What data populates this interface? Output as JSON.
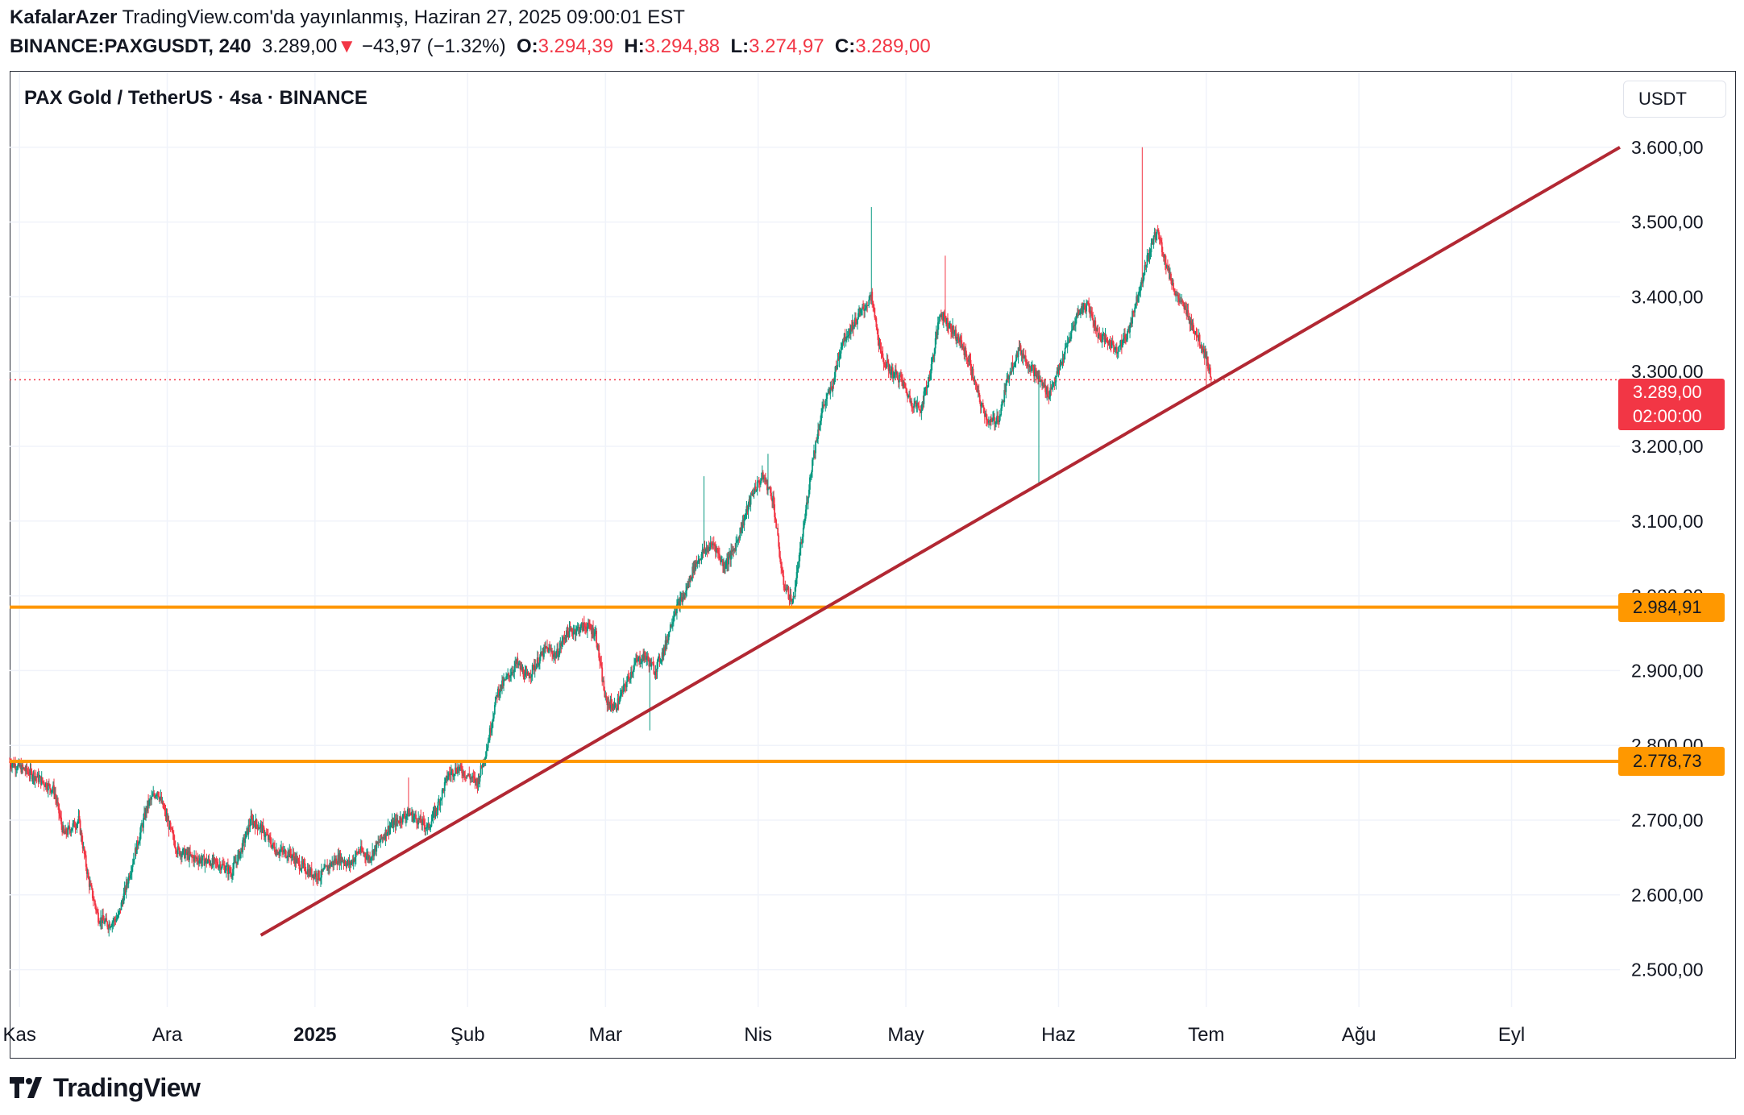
{
  "header": {
    "author": "KafalarAzer",
    "published": "TradingView.com'da yayınlanmış, Haziran 27, 2025 09:00:01 EST",
    "symbol": "BINANCE:PAXGUSDT, 240",
    "last": "3.289,00",
    "change_arrow": "▼",
    "change": "−43,97 (−1.32%)",
    "o_label": "O:",
    "o_value": "3.294,39",
    "h_label": "H:",
    "h_value": "3.294,88",
    "l_label": "L:",
    "l_value": "3.274,97",
    "c_label": "C:",
    "c_value": "3.289,00"
  },
  "pane": {
    "title": "PAX Gold / TetherUS · 4sa · BINANCE",
    "currency": "USDT"
  },
  "tags": {
    "current_price": "3.289,00",
    "countdown": "02:00:00",
    "level_upper": "2.984,91",
    "level_lower": "2.778,73"
  },
  "brand": {
    "name": "TradingView"
  },
  "colors": {
    "up": "#089981",
    "down": "#f23645",
    "trendline": "#b22833",
    "levels": "#ff9800",
    "grid": "#f0f3fa"
  },
  "chart_data": {
    "type": "candlestick",
    "title": "PAX Gold / TetherUS · 4sa · BINANCE",
    "y_axis": {
      "range": [
        2450,
        3700
      ],
      "ticks": [
        "2.500,00",
        "2.600,00",
        "2.700,00",
        "2.800,00",
        "2.900,00",
        "3.000,00",
        "3.100,00",
        "3.200,00",
        "3.300,00",
        "3.400,00",
        "3.500,00",
        "3.600,00"
      ],
      "tick_values": [
        2500,
        2600,
        2700,
        2800,
        2900,
        3000,
        3100,
        3200,
        3300,
        3400,
        3500,
        3600
      ]
    },
    "x_axis": {
      "labels": [
        "Kas",
        "Ara",
        "2025",
        "Şub",
        "Mar",
        "Nis",
        "May",
        "Haz",
        "Tem",
        "Ağu",
        "Eyl"
      ],
      "label_days": [
        0,
        30,
        60,
        91,
        119,
        150,
        180,
        211,
        241,
        272,
        303
      ],
      "range_days": [
        -2,
        325
      ]
    },
    "price_path": [
      [
        -2,
        2778
      ],
      [
        3,
        2760
      ],
      [
        7,
        2740
      ],
      [
        9,
        2680
      ],
      [
        12,
        2700
      ],
      [
        14,
        2620
      ],
      [
        16,
        2570
      ],
      [
        18,
        2560
      ],
      [
        20,
        2570
      ],
      [
        22,
        2620
      ],
      [
        24,
        2670
      ],
      [
        26,
        2720
      ],
      [
        28,
        2740
      ],
      [
        30,
        2700
      ],
      [
        32,
        2660
      ],
      [
        35,
        2650
      ],
      [
        38,
        2645
      ],
      [
        41,
        2640
      ],
      [
        43,
        2630
      ],
      [
        45,
        2660
      ],
      [
        47,
        2700
      ],
      [
        49,
        2690
      ],
      [
        52,
        2660
      ],
      [
        55,
        2655
      ],
      [
        57,
        2640
      ],
      [
        59,
        2630
      ],
      [
        61,
        2625
      ],
      [
        63,
        2640
      ],
      [
        65,
        2650
      ],
      [
        67,
        2640
      ],
      [
        69,
        2660
      ],
      [
        71,
        2650
      ],
      [
        73,
        2670
      ],
      [
        75,
        2690
      ],
      [
        77,
        2700
      ],
      [
        79,
        2710
      ],
      [
        81,
        2700
      ],
      [
        83,
        2690
      ],
      [
        85,
        2720
      ],
      [
        87,
        2760
      ],
      [
        89,
        2770
      ],
      [
        91,
        2760
      ],
      [
        93,
        2750
      ],
      [
        95,
        2800
      ],
      [
        97,
        2870
      ],
      [
        99,
        2890
      ],
      [
        101,
        2910
      ],
      [
        103,
        2890
      ],
      [
        105,
        2910
      ],
      [
        107,
        2930
      ],
      [
        109,
        2920
      ],
      [
        111,
        2950
      ],
      [
        113,
        2955
      ],
      [
        115,
        2960
      ],
      [
        117,
        2950
      ],
      [
        119,
        2860
      ],
      [
        121,
        2850
      ],
      [
        123,
        2880
      ],
      [
        125,
        2910
      ],
      [
        127,
        2920
      ],
      [
        129,
        2900
      ],
      [
        131,
        2930
      ],
      [
        133,
        2980
      ],
      [
        135,
        3000
      ],
      [
        137,
        3040
      ],
      [
        139,
        3060
      ],
      [
        141,
        3070
      ],
      [
        143,
        3040
      ],
      [
        145,
        3060
      ],
      [
        147,
        3100
      ],
      [
        149,
        3140
      ],
      [
        151,
        3160
      ],
      [
        153,
        3130
      ],
      [
        155,
        3020
      ],
      [
        157,
        2990
      ],
      [
        159,
        3080
      ],
      [
        161,
        3180
      ],
      [
        163,
        3250
      ],
      [
        165,
        3280
      ],
      [
        167,
        3340
      ],
      [
        169,
        3360
      ],
      [
        171,
        3380
      ],
      [
        173,
        3400
      ],
      [
        175,
        3320
      ],
      [
        177,
        3300
      ],
      [
        179,
        3290
      ],
      [
        181,
        3260
      ],
      [
        183,
        3250
      ],
      [
        185,
        3300
      ],
      [
        187,
        3380
      ],
      [
        189,
        3360
      ],
      [
        191,
        3340
      ],
      [
        193,
        3310
      ],
      [
        195,
        3260
      ],
      [
        197,
        3230
      ],
      [
        199,
        3240
      ],
      [
        201,
        3300
      ],
      [
        203,
        3330
      ],
      [
        205,
        3310
      ],
      [
        207,
        3290
      ],
      [
        209,
        3270
      ],
      [
        211,
        3300
      ],
      [
        213,
        3340
      ],
      [
        215,
        3380
      ],
      [
        217,
        3390
      ],
      [
        219,
        3350
      ],
      [
        221,
        3340
      ],
      [
        223,
        3330
      ],
      [
        225,
        3350
      ],
      [
        227,
        3400
      ],
      [
        229,
        3450
      ],
      [
        231,
        3490
      ],
      [
        233,
        3440
      ],
      [
        235,
        3400
      ],
      [
        237,
        3380
      ],
      [
        239,
        3350
      ],
      [
        241,
        3320
      ],
      [
        242,
        3289
      ]
    ],
    "notable_wicks": [
      [
        79,
        2757
      ],
      [
        128,
        2820
      ],
      [
        139,
        3160
      ],
      [
        152,
        3190
      ],
      [
        173,
        3520
      ],
      [
        188,
        3455
      ],
      [
        207,
        3150
      ],
      [
        228,
        3600
      ],
      [
        241,
        3278
      ]
    ],
    "trendline": {
      "from": [
        49,
        2546
      ],
      "to": [
        325,
        3600
      ]
    },
    "horizontal_levels": [
      2984.91,
      2778.73
    ],
    "current_price": 3289.0
  }
}
